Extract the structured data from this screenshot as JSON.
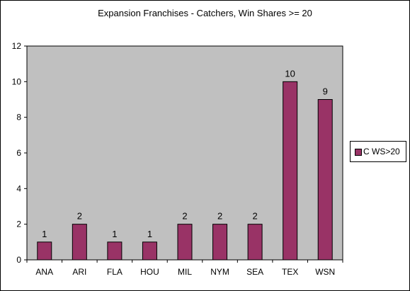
{
  "chart_data": {
    "type": "bar",
    "title": "Expansion Franchises - Catchers, Win Shares >= 20",
    "categories": [
      "ANA",
      "ARI",
      "FLA",
      "HOU",
      "MIL",
      "NYM",
      "SEA",
      "TEX",
      "WSN"
    ],
    "series": [
      {
        "name": "C WS>20",
        "values": [
          1,
          2,
          1,
          1,
          2,
          2,
          2,
          10,
          9
        ]
      }
    ],
    "ylim": [
      0,
      12
    ],
    "yticks": [
      0,
      2,
      4,
      6,
      8,
      10,
      12
    ],
    "data_labels": true,
    "grid": false,
    "legend_position": "right",
    "colors": {
      "bar": "#993366",
      "plot_background": "#c0c0c0",
      "frame": "#000000"
    }
  }
}
